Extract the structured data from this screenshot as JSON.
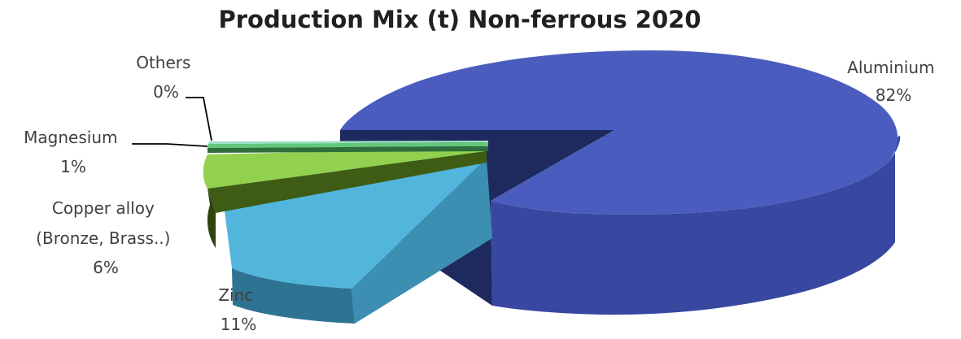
{
  "chart_data": {
    "type": "pie",
    "style": "3d-exploded",
    "title": "Production Mix (t) Non-ferrous 2020",
    "slices": [
      {
        "label": "Aluminium",
        "percent_label": "82%",
        "value": 82,
        "color": "#4A5DBE",
        "side_color": "#3847A0",
        "dark_color": "#1E2A5E"
      },
      {
        "label": "Zinc",
        "percent_label": "11%",
        "value": 11,
        "color": "#52B6DC",
        "side_color": "#3C8FB2",
        "dark_color": "#2E7392"
      },
      {
        "label_lines": [
          "Copper alloy",
          "(Bronze, Brass..)"
        ],
        "percent_label": "6%",
        "value": 6,
        "color": "#92D050",
        "side_color": "#3F5C14",
        "dark_color": "#2F4510"
      },
      {
        "label": "Magnesium",
        "percent_label": "1%",
        "value": 1,
        "color": "#63C77A",
        "side_color": "#2E6E3C",
        "dark_color": "#244F2E"
      },
      {
        "label": "Others",
        "percent_label": "0%",
        "value": 0,
        "color": "#9EE0C8",
        "side_color": "#5DA088",
        "dark_color": "#4A806C"
      }
    ]
  }
}
